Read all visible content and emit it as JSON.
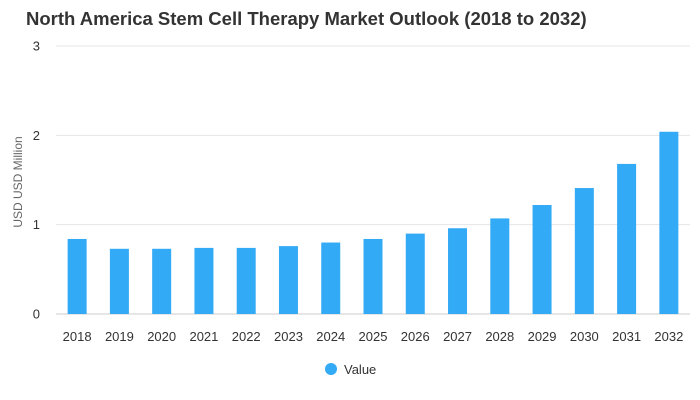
{
  "chart_data": {
    "type": "bar",
    "title": "North America Stem Cell Therapy Market Outlook (2018 to 2032)",
    "xlabel": "",
    "ylabel": "USD USD Million",
    "ylim": [
      0,
      3
    ],
    "yticks": [
      0,
      1,
      2,
      3
    ],
    "grid": true,
    "legend_position": "bottom-center",
    "categories": [
      "2018",
      "2019",
      "2020",
      "2021",
      "2022",
      "2023",
      "2024",
      "2025",
      "2026",
      "2027",
      "2028",
      "2029",
      "2030",
      "2031",
      "2032"
    ],
    "series": [
      {
        "name": "Value",
        "color": "#33aaf5",
        "values": [
          0.84,
          0.73,
          0.73,
          0.74,
          0.74,
          0.76,
          0.8,
          0.84,
          0.9,
          0.96,
          1.07,
          1.22,
          1.41,
          1.68,
          2.04
        ]
      }
    ]
  }
}
